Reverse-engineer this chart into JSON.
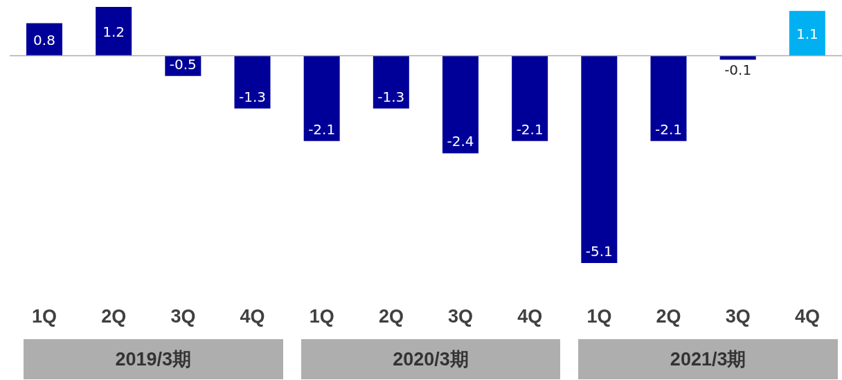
{
  "chart_data": {
    "type": "bar",
    "categories": [
      "1Q",
      "2Q",
      "3Q",
      "4Q",
      "1Q",
      "2Q",
      "3Q",
      "4Q",
      "1Q",
      "2Q",
      "3Q",
      "4Q"
    ],
    "values": [
      0.8,
      1.2,
      -0.5,
      -1.3,
      -2.1,
      -1.3,
      -2.4,
      -2.1,
      -5.1,
      -2.1,
      -0.1,
      1.1
    ],
    "colors": [
      "#000099",
      "#000099",
      "#000099",
      "#000099",
      "#000099",
      "#000099",
      "#000099",
      "#000099",
      "#000099",
      "#000099",
      "#000099",
      "#00b0f0"
    ],
    "data_labels": true,
    "grid": false,
    "legend": false,
    "annotations": [
      "2019/3期",
      "2020/3期",
      "2021/3期"
    ]
  }
}
